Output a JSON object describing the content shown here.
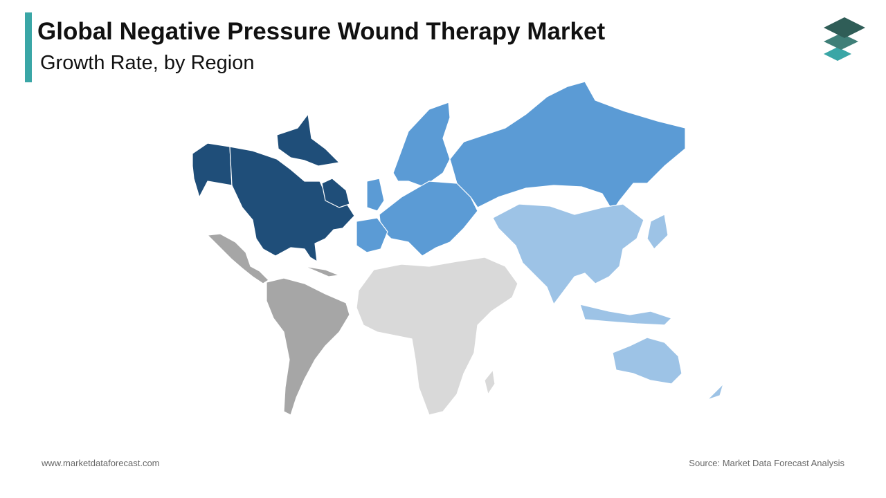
{
  "header": {
    "title": "Global Negative Pressure Wound Therapy Market",
    "subtitle": "Growth Rate, by Region"
  },
  "footer": {
    "website": "www.marketdataforecast.com",
    "source": "Source: Market Data Forecast Analysis"
  }
}
